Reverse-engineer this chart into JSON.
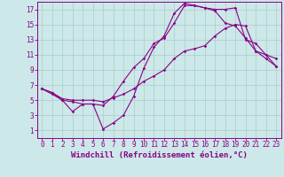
{
  "title": "",
  "xlabel": "Windchill (Refroidissement éolien,°C)",
  "ylabel": "",
  "bg_color": "#cce8e8",
  "line_color": "#880088",
  "grid_color": "#aacccc",
  "xlim": [
    -0.5,
    23.5
  ],
  "ylim": [
    0,
    18
  ],
  "xticks": [
    0,
    1,
    2,
    3,
    4,
    5,
    6,
    7,
    8,
    9,
    10,
    11,
    12,
    13,
    14,
    15,
    16,
    17,
    18,
    19,
    20,
    21,
    22,
    23
  ],
  "yticks": [
    1,
    3,
    5,
    7,
    9,
    11,
    13,
    15,
    17
  ],
  "line1_x": [
    0,
    1,
    2,
    3,
    4,
    5,
    6,
    7,
    8,
    9,
    10,
    11,
    12,
    13,
    14,
    15,
    16,
    17,
    18,
    19,
    20,
    21,
    22,
    23
  ],
  "line1_y": [
    6.5,
    6.0,
    5.0,
    4.8,
    4.5,
    4.5,
    4.3,
    5.5,
    7.5,
    9.3,
    10.5,
    12.5,
    13.2,
    15.2,
    17.5,
    17.5,
    17.2,
    17.0,
    17.0,
    17.2,
    13.0,
    12.5,
    11.0,
    9.5
  ],
  "line2_x": [
    0,
    1,
    2,
    3,
    4,
    5,
    6,
    7,
    8,
    9,
    10,
    11,
    12,
    13,
    14,
    15,
    16,
    17,
    18,
    19,
    20,
    21,
    22,
    23
  ],
  "line2_y": [
    6.5,
    5.8,
    5.0,
    3.5,
    4.5,
    4.5,
    1.2,
    2.0,
    3.0,
    5.5,
    9.2,
    12.0,
    13.5,
    16.5,
    17.8,
    17.5,
    17.2,
    16.8,
    15.2,
    14.8,
    13.2,
    11.5,
    10.5,
    9.5
  ],
  "line3_x": [
    0,
    1,
    2,
    3,
    4,
    5,
    6,
    7,
    8,
    9,
    10,
    11,
    12,
    13,
    14,
    15,
    16,
    17,
    18,
    19,
    20,
    21,
    22,
    23
  ],
  "line3_y": [
    6.5,
    6.0,
    5.2,
    5.0,
    5.0,
    5.0,
    4.8,
    5.3,
    5.8,
    6.5,
    7.5,
    8.2,
    9.0,
    10.5,
    11.5,
    11.8,
    12.2,
    13.5,
    14.5,
    15.0,
    14.8,
    11.5,
    11.0,
    10.5
  ],
  "fontsize_label": 6.5,
  "fontsize_tick": 5.5,
  "marker": "D",
  "markersize": 1.8,
  "linewidth": 0.8
}
